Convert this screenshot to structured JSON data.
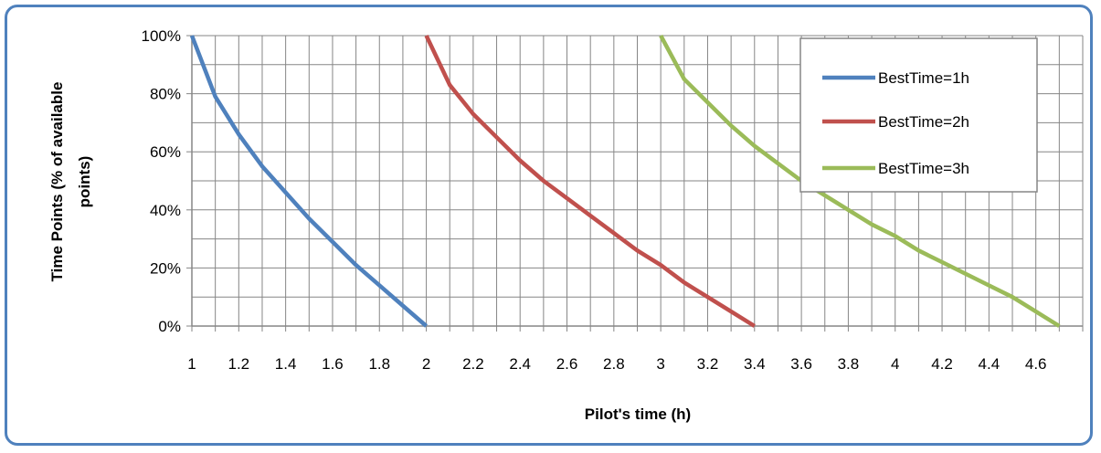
{
  "chart_data": {
    "type": "line",
    "title": "",
    "xlabel": "Pilot's time (h)",
    "ylabel_lines": [
      "Time Points (% of available",
      "points)"
    ],
    "xlim": [
      1,
      4.8
    ],
    "ylim": [
      0,
      100
    ],
    "x_ticks": [
      1,
      1.2,
      1.4,
      1.6,
      1.8,
      2,
      2.2,
      2.4,
      2.6,
      2.8,
      3,
      3.2,
      3.4,
      3.6,
      3.8,
      4,
      4.2,
      4.4,
      4.6
    ],
    "x_tick_labels": [
      "1",
      "1.2",
      "1.4",
      "1.6",
      "1.8",
      "2",
      "2.2",
      "2.4",
      "2.6",
      "2.8",
      "3",
      "3.2",
      "3.4",
      "3.6",
      "3.8",
      "4",
      "4.2",
      "4.4",
      "4.6"
    ],
    "y_ticks": [
      0,
      20,
      40,
      60,
      80,
      100
    ],
    "y_tick_labels": [
      "0%",
      "20%",
      "40%",
      "60%",
      "80%",
      "100%"
    ],
    "grid": true,
    "legend_position": "top-right",
    "series": [
      {
        "name": "BestTime=1h",
        "color": "#4f81bd",
        "x": [
          1,
          1.1,
          1.2,
          1.3,
          1.4,
          1.5,
          1.6,
          1.7,
          1.8,
          1.9,
          2
        ],
        "y": [
          100,
          79,
          66,
          55,
          46,
          37,
          29,
          21,
          14,
          7,
          0
        ]
      },
      {
        "name": "BestTime=2h",
        "color": "#c0504d",
        "x": [
          2,
          2.1,
          2.2,
          2.3,
          2.4,
          2.5,
          2.6,
          2.7,
          2.8,
          2.9,
          3,
          3.1,
          3.2,
          3.3,
          3.4
        ],
        "y": [
          100,
          83,
          73,
          65,
          57,
          50,
          44,
          38,
          32,
          26,
          21,
          15,
          10,
          5,
          0
        ]
      },
      {
        "name": "BestTime=3h",
        "color": "#9bbb59",
        "x": [
          3,
          3.1,
          3.2,
          3.3,
          3.4,
          3.5,
          3.6,
          3.7,
          3.8,
          3.9,
          4,
          4.1,
          4.2,
          4.3,
          4.4,
          4.5,
          4.6,
          4.7
        ],
        "y": [
          100,
          85,
          77,
          69,
          62,
          56,
          50,
          45,
          40,
          35,
          31,
          26,
          22,
          18,
          14,
          10,
          5,
          0
        ]
      }
    ]
  }
}
